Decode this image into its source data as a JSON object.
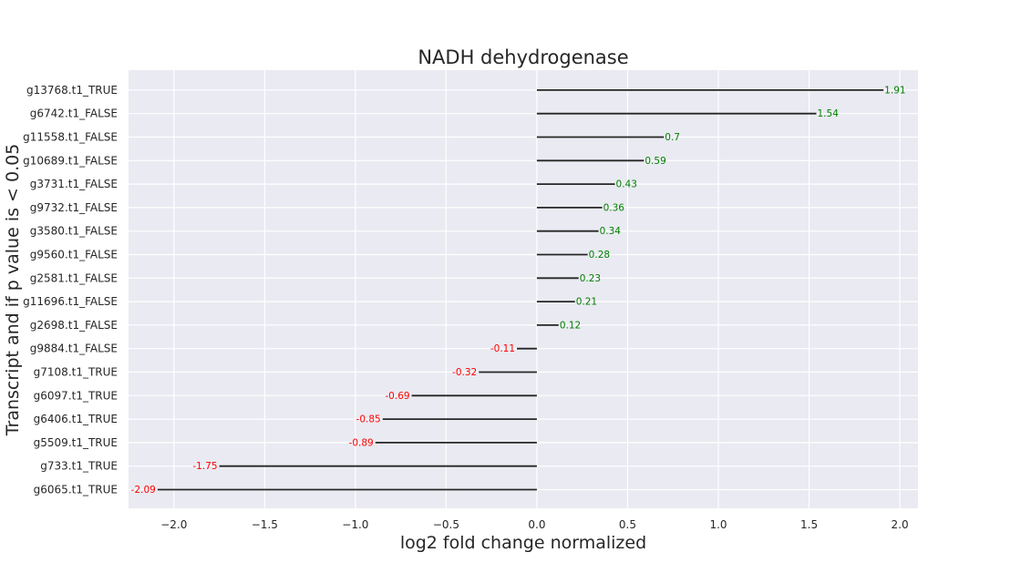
{
  "chart_data": {
    "type": "bar",
    "orientation": "horizontal",
    "title": "NADH dehydrogenase",
    "xlabel": "log2 fold change normalized",
    "ylabel": "Transcript and if p value is < 0.05",
    "xlim": [
      -2.25,
      2.1
    ],
    "xticks": [
      "−2.0",
      "−1.5",
      "−1.0",
      "−0.5",
      "0.0",
      "0.5",
      "1.0",
      "1.5",
      "2.0"
    ],
    "xtick_values": [
      -2.0,
      -1.5,
      -1.0,
      -0.5,
      0.0,
      0.5,
      1.0,
      1.5,
      2.0
    ],
    "grid": true,
    "positive_color": "#008000",
    "negative_color": "#ff0000",
    "line_color": "#262626",
    "background_color": "#eaeaf2",
    "categories": [
      "g13768.t1_TRUE",
      "g6742.t1_FALSE",
      "g11558.t1_FALSE",
      "g10689.t1_FALSE",
      "g3731.t1_FALSE",
      "g9732.t1_FALSE",
      "g3580.t1_FALSE",
      "g9560.t1_FALSE",
      "g2581.t1_FALSE",
      "g11696.t1_FALSE",
      "g2698.t1_FALSE",
      "g9884.t1_FALSE",
      "g7108.t1_TRUE",
      "g6097.t1_TRUE",
      "g6406.t1_TRUE",
      "g5509.t1_TRUE",
      "g733.t1_TRUE",
      "g6065.t1_TRUE"
    ],
    "values": [
      1.91,
      1.54,
      0.7,
      0.59,
      0.43,
      0.36,
      0.34,
      0.28,
      0.23,
      0.21,
      0.12,
      -0.11,
      -0.32,
      -0.69,
      -0.85,
      -0.89,
      -1.75,
      -2.09
    ],
    "value_labels": [
      "1.91",
      "1.54",
      "0.7",
      "0.59",
      "0.43",
      "0.36",
      "0.34",
      "0.28",
      "0.23",
      "0.21",
      "0.12",
      "-0.11",
      "-0.32",
      "-0.69",
      "-0.85",
      "-0.89",
      "-1.75",
      "-2.09"
    ]
  }
}
